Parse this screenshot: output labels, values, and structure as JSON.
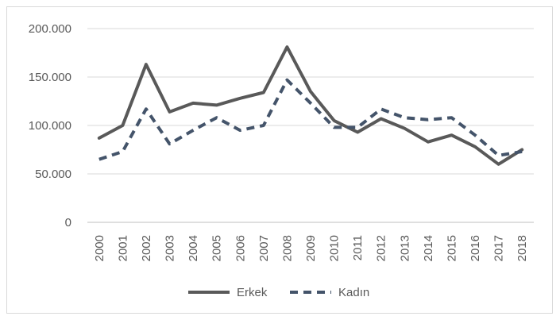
{
  "chart_data": {
    "type": "line",
    "title": "",
    "xlabel": "",
    "ylabel": "",
    "ylim": [
      0,
      200000
    ],
    "ytick_values": [
      0,
      50000,
      100000,
      150000,
      200000
    ],
    "ytick_labels": [
      "0",
      "50.000",
      "100.000",
      "150.000",
      "200.000"
    ],
    "grid": "horizontal",
    "legend_position": "bottom",
    "categories": [
      "2000",
      "2001",
      "2002",
      "2003",
      "2004",
      "2005",
      "2006",
      "2007",
      "2008",
      "2009",
      "2010",
      "2011",
      "2012",
      "2013",
      "2014",
      "2015",
      "2016",
      "2017",
      "2018"
    ],
    "series": [
      {
        "name": "Erkek",
        "style": "solid",
        "color": "#595959",
        "values": [
          87000,
          100000,
          163000,
          114000,
          123000,
          121000,
          128000,
          134000,
          181000,
          135000,
          105000,
          93000,
          107000,
          97000,
          83000,
          90000,
          78000,
          60000,
          75000
        ]
      },
      {
        "name": "Kadın",
        "style": "dashed",
        "color": "#44546a",
        "values": [
          65000,
          73000,
          117000,
          81000,
          95000,
          108000,
          95000,
          100000,
          147000,
          123000,
          98000,
          98000,
          117000,
          108000,
          106000,
          108000,
          90000,
          69000,
          73000
        ]
      }
    ]
  }
}
